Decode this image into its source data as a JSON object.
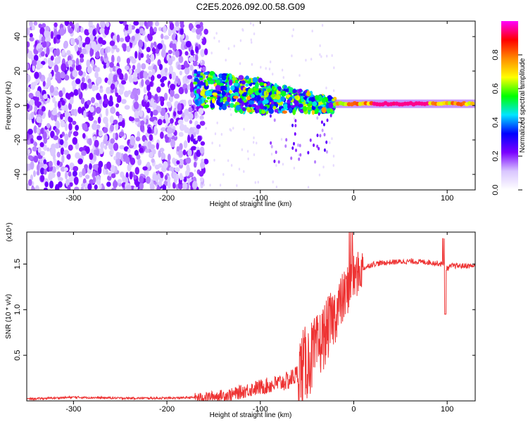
{
  "page_title": "C2E5.2026.092.00.58.G09",
  "chart_data": [
    {
      "type": "heatmap",
      "name": "spectrogram",
      "title": "C2E5.2026.092.00.58.G09",
      "xlabel": "Height of straight line (km)",
      "ylabel": "Frequency (Hz)",
      "xlim": [
        -350,
        130
      ],
      "ylim": [
        -49,
        49
      ],
      "x_ticks": [
        -300,
        -200,
        -100,
        0,
        100
      ],
      "y_ticks": [
        -40,
        -20,
        0,
        20,
        40
      ],
      "colorbar": {
        "label": "Normalized spectral amplitude",
        "range": [
          0,
          1
        ],
        "ticks": [
          "0.0",
          "0.2",
          "0.4",
          "0.6",
          "0.8"
        ],
        "tick_values": [
          0.0,
          0.2,
          0.4,
          0.6,
          0.8
        ],
        "colors": [
          "#ffffff",
          "#d9c6ff",
          "#7a00ff",
          "#0000ff",
          "#00e5ff",
          "#00ff00",
          "#ffff00",
          "#ff8c00",
          "#ff0000",
          "#ff00ff"
        ]
      },
      "regions": [
        {
          "name": "noise",
          "x_range": [
            -350,
            -170
          ],
          "freq_range": [
            -49,
            49
          ],
          "amplitude": 0.15
        },
        {
          "name": "signal-onset",
          "x_range": [
            -170,
            -20
          ],
          "freq_start": 10,
          "freq_end": 0,
          "amplitude": 0.45
        },
        {
          "name": "signal-lock",
          "x_range": [
            -20,
            130
          ],
          "freq": 1,
          "amplitude": 0.9
        }
      ]
    },
    {
      "type": "line",
      "name": "snr",
      "xlabel": "Height of straight line (km)",
      "ylabel": "SNR (10 * v/v)",
      "scale_label": "(x10⁴)",
      "xlim": [
        -350,
        130
      ],
      "ylim": [
        0,
        1.85
      ],
      "x_ticks": [
        -300,
        -200,
        -100,
        0,
        100
      ],
      "y_ticks": [
        0.5,
        1.0,
        1.5
      ],
      "y_tick_labels": [
        "0.5",
        "1.0",
        "1.5"
      ],
      "color": "#ee3333",
      "series": [
        {
          "name": "SNR",
          "x": [
            -350,
            -300,
            -250,
            -200,
            -160,
            -130,
            -110,
            -90,
            -70,
            -60,
            -50,
            -40,
            -30,
            -20,
            -10,
            0,
            10,
            20,
            40,
            60,
            80,
            95,
            100,
            105,
            130
          ],
          "values": [
            0.02,
            0.04,
            0.03,
            0.03,
            0.04,
            0.07,
            0.13,
            0.17,
            0.22,
            0.3,
            0.42,
            0.55,
            0.75,
            0.95,
            1.15,
            1.35,
            1.45,
            1.5,
            1.52,
            1.53,
            1.52,
            1.5,
            1.45,
            1.48,
            1.48
          ]
        }
      ]
    }
  ]
}
